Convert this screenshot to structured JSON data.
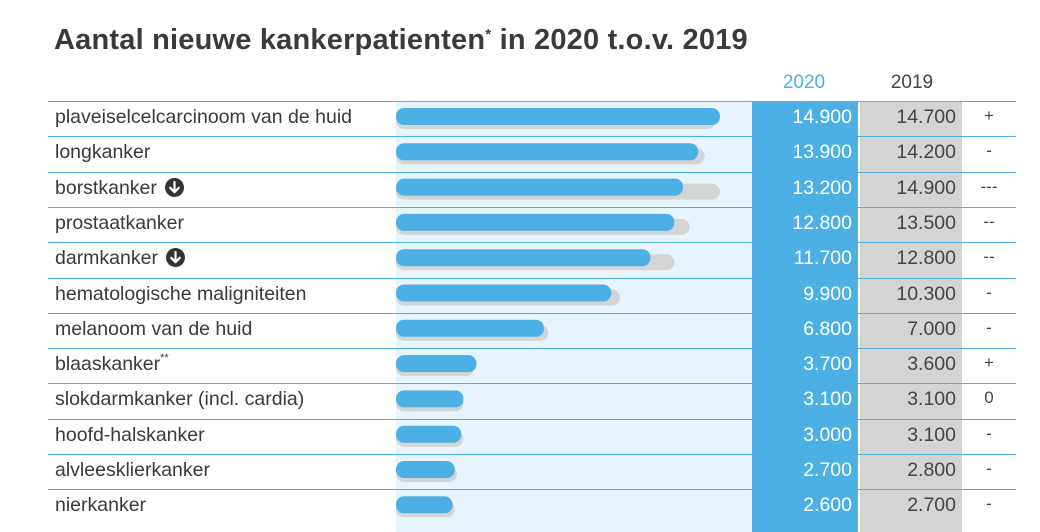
{
  "chart_data": {
    "type": "bar",
    "title": "Aantal nieuwe kankerpatienten",
    "title_mark": "*",
    "title_suffix": " in 2020 t.o.v. 2019",
    "series": [
      {
        "name": "2020",
        "color": "#4db0e4"
      },
      {
        "name": "2019",
        "color": "#d4d4d4"
      }
    ],
    "rows": [
      {
        "label": "plaveiselcelcarcinoom van de huid",
        "mark": "",
        "decrease_icon": false,
        "v2020": 14900,
        "v2019": 14700,
        "t2020": "14.900",
        "t2019": "14.700",
        "change": "+"
      },
      {
        "label": "longkanker",
        "mark": "",
        "decrease_icon": false,
        "v2020": 13900,
        "v2019": 14200,
        "t2020": "13.900",
        "t2019": "14.200",
        "change": "-"
      },
      {
        "label": "borstkanker",
        "mark": "",
        "decrease_icon": true,
        "v2020": 13200,
        "v2019": 14900,
        "t2020": "13.200",
        "t2019": "14.900",
        "change": "---"
      },
      {
        "label": "prostaatkanker",
        "mark": "",
        "decrease_icon": false,
        "v2020": 12800,
        "v2019": 13500,
        "t2020": "12.800",
        "t2019": "13.500",
        "change": "--"
      },
      {
        "label": "darmkanker",
        "mark": "",
        "decrease_icon": true,
        "v2020": 11700,
        "v2019": 12800,
        "t2020": "11.700",
        "t2019": "12.800",
        "change": "--"
      },
      {
        "label": "hematologische maligniteiten",
        "mark": "",
        "decrease_icon": false,
        "v2020": 9900,
        "v2019": 10300,
        "t2020": "9.900",
        "t2019": "10.300",
        "change": "-"
      },
      {
        "label": "melanoom van de huid",
        "mark": "",
        "decrease_icon": false,
        "v2020": 6800,
        "v2019": 7000,
        "t2020": "6.800",
        "t2019": "7.000",
        "change": "-"
      },
      {
        "label": "blaaskanker",
        "mark": "**",
        "decrease_icon": false,
        "v2020": 3700,
        "v2019": 3600,
        "t2020": "3.700",
        "t2019": "3.600",
        "change": "+"
      },
      {
        "label": "slokdarmkanker (incl. cardia)",
        "mark": "",
        "decrease_icon": false,
        "v2020": 3100,
        "v2019": 3100,
        "t2020": "3.100",
        "t2019": "3.100",
        "change": "0"
      },
      {
        "label": "hoofd-halskanker",
        "mark": "",
        "decrease_icon": false,
        "v2020": 3000,
        "v2019": 3100,
        "t2020": "3.000",
        "t2019": "3.100",
        "change": "-"
      },
      {
        "label": "alvleesklierkanker",
        "mark": "",
        "decrease_icon": false,
        "v2020": 2700,
        "v2019": 2800,
        "t2020": "2.700",
        "t2019": "2.800",
        "change": "-"
      },
      {
        "label": "nierkanker",
        "mark": "",
        "decrease_icon": false,
        "v2020": 2600,
        "v2019": 2700,
        "t2020": "2.600",
        "t2019": "2.700",
        "change": "-"
      }
    ],
    "xlim": [
      0,
      16000
    ],
    "legend": "column-headers"
  }
}
